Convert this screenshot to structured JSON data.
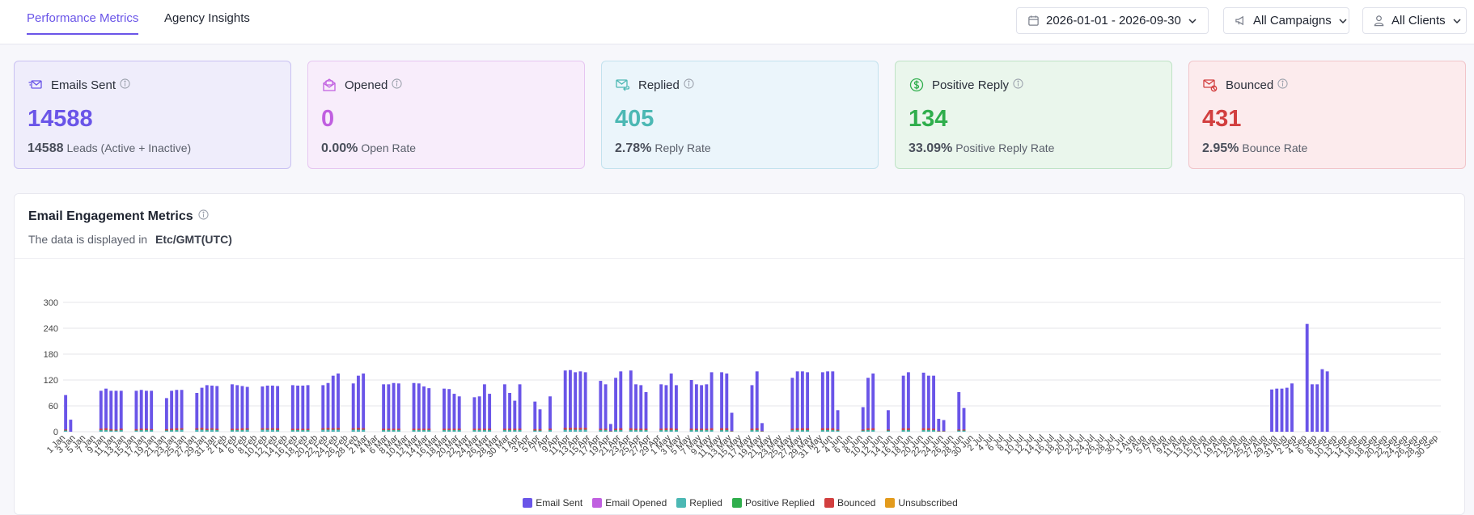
{
  "tabs": [
    {
      "label": "Performance Metrics",
      "active": true
    },
    {
      "label": "Agency Insights",
      "active": false
    }
  ],
  "filters": {
    "date_range": "2026-01-01 - 2026-09-30",
    "campaigns": "All Campaigns",
    "clients": "All Clients"
  },
  "cards": [
    {
      "title": "Emails Sent",
      "value": "14588",
      "sub_value": "14588",
      "sub_label": "Leads (Active + Inactive)",
      "accent": "#6a55e8",
      "bg": "#efedfb",
      "border": "#c9c1f2",
      "icon": "send-mail-icon"
    },
    {
      "title": "Opened",
      "value": "0",
      "sub_value": "0.00%",
      "sub_label": "Open Rate",
      "accent": "#c05fe0",
      "bg": "#f8edfb",
      "border": "#e6c6f1",
      "icon": "open-envelope-icon"
    },
    {
      "title": "Replied",
      "value": "405",
      "sub_value": "2.78%",
      "sub_label": "Reply Rate",
      "accent": "#4cb8b4",
      "bg": "#ebf5fb",
      "border": "#c3e2ee",
      "icon": "reply-mail-icon"
    },
    {
      "title": "Positive Reply",
      "value": "134",
      "sub_value": "33.09%",
      "sub_label": "Positive Reply Rate",
      "accent": "#2fae4c",
      "bg": "#eaf6ec",
      "border": "#bfe3c6",
      "icon": "dollar-circle-icon"
    },
    {
      "title": "Bounced",
      "value": "431",
      "sub_value": "2.95%",
      "sub_label": "Bounce Rate",
      "accent": "#d23f3f",
      "bg": "#fcebed",
      "border": "#f1c5ca",
      "icon": "bounce-mail-icon"
    }
  ],
  "panel": {
    "title": "Email Engagement Metrics",
    "subtitle": "The data is displayed in",
    "timezone": "Etc/GMT(UTC)"
  },
  "chart_data": {
    "type": "bar",
    "ylim": [
      0,
      300
    ],
    "yticks": [
      0,
      60,
      120,
      180,
      240,
      300
    ],
    "start_date": "2026-01-01",
    "end_date": "2026-09-30",
    "tick_every_days": 2,
    "series": [
      {
        "name": "Email Sent",
        "color": "#6a55e8",
        "values": [
          85,
          28,
          0,
          0,
          0,
          0,
          0,
          95,
          100,
          95,
          95,
          95,
          0,
          0,
          95,
          97,
          95,
          95,
          0,
          0,
          78,
          95,
          97,
          97,
          0,
          0,
          90,
          102,
          108,
          107,
          106,
          0,
          0,
          110,
          108,
          106,
          104,
          0,
          0,
          105,
          107,
          107,
          106,
          0,
          0,
          108,
          107,
          107,
          108,
          0,
          0,
          108,
          113,
          130,
          135,
          0,
          0,
          112,
          130,
          135,
          0,
          0,
          0,
          110,
          110,
          113,
          112,
          0,
          0,
          113,
          112,
          105,
          101,
          0,
          0,
          100,
          99,
          88,
          82,
          0,
          0,
          80,
          82,
          110,
          88,
          0,
          0,
          110,
          90,
          72,
          110,
          0,
          0,
          70,
          52,
          0,
          82,
          0,
          0,
          142,
          143,
          138,
          140,
          138,
          0,
          0,
          118,
          110,
          18,
          125,
          140,
          0,
          142,
          110,
          108,
          92,
          0,
          0,
          110,
          108,
          135,
          108,
          0,
          0,
          120,
          110,
          108,
          110,
          138,
          0,
          138,
          135,
          44,
          0,
          0,
          0,
          108,
          140,
          20,
          0,
          0,
          0,
          0,
          0,
          125,
          140,
          140,
          138,
          0,
          0,
          138,
          140,
          140,
          50,
          0,
          0,
          0,
          0,
          57,
          125,
          135,
          0,
          0,
          50,
          0,
          0,
          130,
          138,
          0,
          0,
          137,
          130,
          130,
          30,
          27,
          0,
          0,
          92,
          55,
          0,
          0,
          0,
          0,
          0,
          0,
          0,
          0,
          0,
          0,
          0,
          0,
          0,
          0,
          0,
          0,
          0,
          0,
          0,
          0,
          0,
          0,
          0,
          0,
          0,
          0,
          0,
          0,
          0,
          0,
          0,
          0,
          0,
          0,
          0,
          0,
          0,
          0,
          0,
          0,
          0,
          0,
          0,
          0,
          0,
          0,
          0,
          0,
          0,
          0,
          0,
          0,
          0,
          0,
          0,
          0,
          0,
          0,
          0,
          0,
          98,
          100,
          100,
          102,
          112,
          0,
          0,
          250,
          110,
          110,
          145,
          140,
          0,
          0,
          0,
          0,
          0,
          0,
          0,
          0,
          0,
          0,
          0,
          0,
          0,
          0
        ]
      },
      {
        "name": "Email Opened",
        "color": "#c05fe0",
        "values": []
      },
      {
        "name": "Replied",
        "color": "#4cb8b4",
        "values": [
          2,
          0,
          0,
          0,
          0,
          0,
          0,
          3,
          3,
          2,
          2,
          3,
          0,
          0,
          2,
          3,
          3,
          3,
          0,
          0,
          2,
          3,
          3,
          4,
          0,
          0,
          4,
          4,
          3,
          4,
          3,
          0,
          0,
          3,
          3,
          3,
          4,
          0,
          0,
          4,
          4,
          4,
          3,
          0,
          0,
          3,
          3,
          3,
          3,
          0,
          0,
          4,
          4,
          4,
          4,
          0,
          0,
          4,
          4,
          4,
          0,
          0,
          0,
          3,
          3,
          3,
          3,
          0,
          0,
          3,
          3,
          3,
          3,
          0,
          0,
          3,
          3,
          3,
          3,
          0,
          0,
          3,
          3,
          3,
          3,
          0,
          0,
          3,
          3,
          3,
          3,
          0,
          0,
          2,
          2,
          0,
          3,
          0,
          0,
          4,
          4,
          4,
          4,
          4,
          0,
          0,
          3,
          3,
          1,
          3,
          3,
          0,
          3,
          3,
          3,
          3,
          0,
          0,
          3,
          3,
          3,
          3,
          0,
          0,
          3,
          3,
          3,
          3,
          3,
          0,
          3,
          3,
          1,
          0,
          0,
          0,
          3,
          3,
          1,
          0,
          0,
          0,
          0,
          0,
          3,
          3,
          3,
          3,
          0,
          0,
          3,
          3,
          3,
          2,
          0,
          0,
          0,
          0,
          2,
          3,
          3,
          0,
          0,
          2,
          0,
          0,
          3,
          3,
          0,
          0,
          3,
          3,
          3,
          1,
          1,
          0,
          0,
          2,
          2
        ]
      },
      {
        "name": "Positive Replied",
        "color": "#2fae4c",
        "values": [
          1,
          0,
          0,
          0,
          0,
          0,
          0,
          1,
          1,
          1,
          1,
          1,
          0,
          0,
          1,
          1,
          1,
          1,
          0,
          0,
          1,
          1,
          1,
          1,
          0,
          0,
          1,
          1,
          1,
          1,
          1,
          0,
          0,
          1,
          1,
          1,
          1,
          0,
          0,
          1,
          1,
          1,
          1,
          0,
          0,
          1,
          1,
          1,
          1,
          0,
          0,
          1,
          1,
          1,
          1,
          0,
          0,
          1,
          1,
          1,
          0,
          0,
          0,
          1,
          1,
          1,
          1,
          0,
          0,
          1,
          1,
          1,
          1,
          0,
          0,
          1,
          1,
          1,
          1,
          0,
          0,
          1,
          1,
          1,
          1,
          0,
          0,
          1,
          1,
          1,
          1,
          0,
          0,
          1,
          1,
          0,
          1,
          0,
          0,
          1,
          1,
          1,
          1,
          1,
          0,
          0,
          1,
          1,
          0,
          1,
          1,
          0,
          1,
          1,
          1,
          1,
          0,
          0,
          1,
          1,
          1,
          1,
          0,
          0,
          1,
          1,
          1,
          1,
          1,
          0,
          1,
          1,
          0,
          0,
          0,
          0,
          1,
          1,
          0,
          0,
          0,
          0,
          0,
          0,
          1,
          1,
          1,
          1,
          0,
          0,
          1,
          1,
          1,
          1,
          0,
          0,
          0,
          0,
          1,
          1,
          1,
          0,
          0,
          1,
          0,
          0,
          1,
          1,
          0,
          0,
          1,
          1,
          1,
          0,
          0,
          0,
          0,
          1,
          1
        ]
      },
      {
        "name": "Bounced",
        "color": "#d23f3f",
        "values": [
          2,
          0,
          0,
          0,
          0,
          0,
          0,
          3,
          4,
          3,
          2,
          3,
          0,
          0,
          3,
          3,
          3,
          2,
          0,
          0,
          3,
          3,
          4,
          3,
          0,
          0,
          3,
          4,
          3,
          3,
          3,
          0,
          0,
          3,
          3,
          4,
          3,
          0,
          0,
          3,
          3,
          3,
          4,
          0,
          0,
          3,
          3,
          3,
          3,
          0,
          0,
          3,
          4,
          3,
          4,
          0,
          0,
          3,
          4,
          3,
          0,
          0,
          0,
          3,
          3,
          3,
          3,
          0,
          0,
          3,
          3,
          3,
          3,
          0,
          0,
          3,
          3,
          3,
          3,
          0,
          0,
          3,
          3,
          3,
          3,
          0,
          0,
          3,
          3,
          3,
          3,
          0,
          0,
          3,
          3,
          0,
          3,
          0,
          0,
          4,
          4,
          4,
          4,
          4,
          0,
          0,
          3,
          3,
          1,
          3,
          4,
          0,
          4,
          3,
          3,
          3,
          0,
          0,
          3,
          4,
          4,
          3,
          0,
          0,
          3,
          3,
          3,
          3,
          4,
          0,
          4,
          4,
          1,
          0,
          0,
          0,
          3,
          4,
          1,
          0,
          0,
          0,
          0,
          0,
          3,
          4,
          4,
          4,
          0,
          0,
          4,
          4,
          4,
          2,
          0,
          0,
          0,
          0,
          2,
          4,
          4,
          0,
          0,
          2,
          0,
          0,
          4,
          4,
          0,
          0,
          4,
          4,
          3,
          1,
          1,
          0,
          0,
          2,
          2
        ]
      },
      {
        "name": "Unsubscribed",
        "color": "#e39b1c",
        "values": []
      }
    ]
  }
}
